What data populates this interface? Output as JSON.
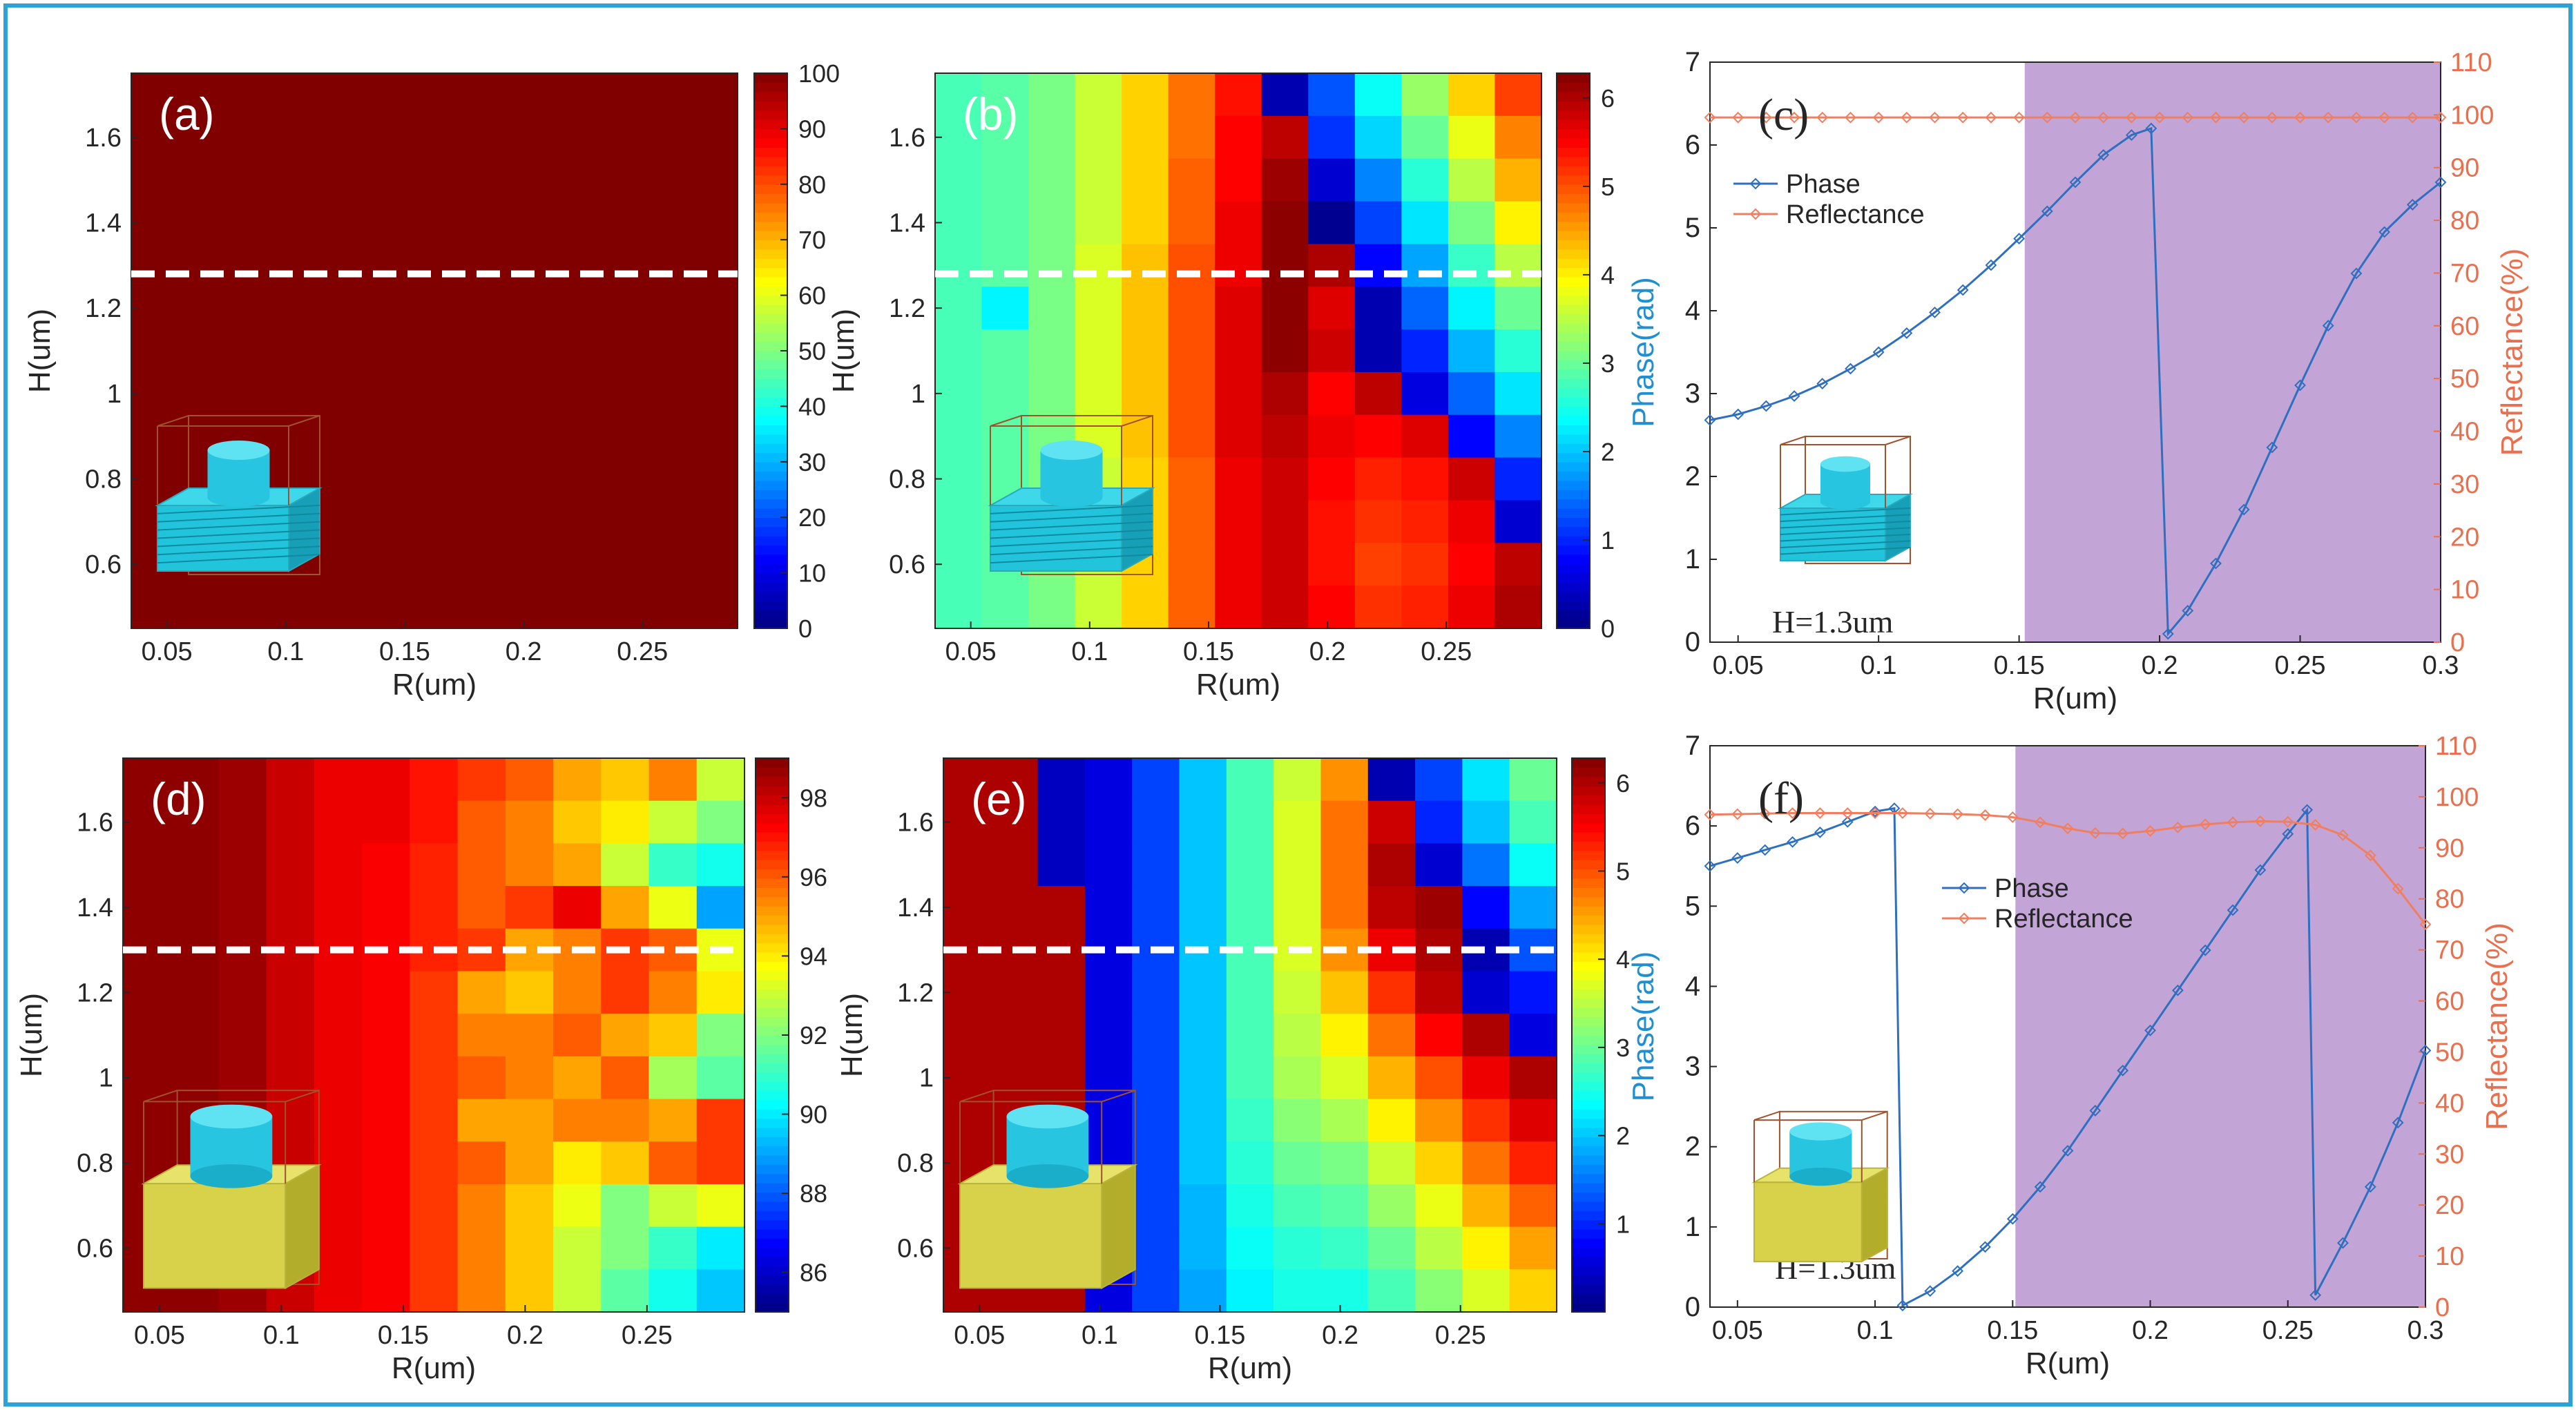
{
  "figure": {
    "frame_color": "#2ba3d6"
  },
  "chart_data": [
    {
      "id": "a",
      "type": "heatmap",
      "label": "(a)",
      "xlabel": "R(um)",
      "ylabel": "H(um)",
      "xticks": [
        "0.05",
        "0.1",
        "0.15",
        "0.2",
        "0.25"
      ],
      "yticks": [
        "0.6",
        "0.8",
        "1",
        "1.2",
        "1.4",
        "1.6"
      ],
      "xlim": [
        0.035,
        0.29
      ],
      "ylim": [
        0.45,
        1.75
      ],
      "colorbar": {
        "min": 0,
        "max": 100,
        "ticks": [
          "0",
          "10",
          "20",
          "30",
          "40",
          "50",
          "60",
          "70",
          "80",
          "90",
          "100"
        ]
      },
      "guide_line_H": 1.28,
      "value_summary": "uniform reflectance about 100 over the full grid",
      "uniform_value": 100,
      "inset": "substrate-stack"
    },
    {
      "id": "b",
      "type": "heatmap",
      "label": "(b)",
      "xlabel": "R(um)",
      "ylabel": "H(um)",
      "xticks": [
        "0.05",
        "0.1",
        "0.15",
        "0.2",
        "0.25"
      ],
      "yticks": [
        "0.6",
        "0.8",
        "1",
        "1.2",
        "1.4",
        "1.6"
      ],
      "xlim": [
        0.035,
        0.29
      ],
      "ylim": [
        0.45,
        1.75
      ],
      "colorbar": {
        "min": 0,
        "max": 6.28,
        "ticks": [
          "0",
          "1",
          "2",
          "3",
          "4",
          "5",
          "6"
        ]
      },
      "guide_line_H": 1.28,
      "x_centers": [
        0.045,
        0.065,
        0.085,
        0.105,
        0.125,
        0.145,
        0.165,
        0.185,
        0.205,
        0.225,
        0.245,
        0.265,
        0.285
      ],
      "row_H": [
        1.75,
        1.62,
        1.52,
        1.42,
        1.32,
        1.22,
        1.12,
        1.02,
        0.92,
        0.82,
        0.72,
        0.62,
        0.52
      ],
      "z": [
        [
          2.8,
          2.9,
          3.1,
          3.6,
          4.2,
          4.8,
          5.4,
          0.3,
          1.3,
          2.4,
          3.3,
          4.2,
          5.1
        ],
        [
          2.8,
          2.9,
          3.1,
          3.6,
          4.2,
          4.8,
          5.5,
          5.9,
          1.1,
          2.1,
          3.0,
          3.8,
          4.7
        ],
        [
          2.8,
          2.9,
          3.1,
          3.6,
          4.2,
          4.9,
          5.5,
          6.1,
          0.5,
          1.6,
          2.6,
          3.5,
          4.4
        ],
        [
          2.8,
          2.9,
          3.1,
          3.6,
          4.2,
          4.9,
          5.6,
          6.2,
          0.1,
          1.2,
          2.2,
          3.1,
          4.0
        ],
        [
          2.8,
          2.9,
          3.1,
          3.7,
          4.3,
          5.0,
          5.6,
          6.2,
          6.0,
          0.8,
          1.8,
          2.7,
          3.5
        ],
        [
          2.8,
          2.3,
          3.1,
          3.7,
          4.3,
          5.0,
          5.7,
          6.2,
          5.7,
          0.3,
          1.4,
          2.3,
          3.0
        ],
        [
          2.8,
          2.9,
          3.1,
          3.7,
          4.3,
          5.0,
          5.7,
          6.2,
          5.8,
          0.3,
          1.0,
          1.9,
          2.6
        ],
        [
          2.8,
          2.9,
          3.1,
          3.7,
          4.3,
          5.0,
          5.7,
          6.0,
          5.5,
          5.9,
          0.6,
          1.4,
          2.2
        ],
        [
          2.8,
          2.9,
          3.1,
          3.7,
          4.3,
          5.0,
          5.7,
          5.9,
          5.6,
          5.5,
          5.7,
          0.8,
          1.6
        ],
        [
          2.8,
          2.9,
          3.1,
          3.6,
          4.2,
          4.9,
          5.6,
          5.8,
          5.5,
          5.3,
          5.4,
          5.8,
          1.0
        ],
        [
          2.8,
          2.9,
          3.1,
          3.6,
          4.2,
          4.9,
          5.6,
          5.8,
          5.4,
          5.2,
          5.3,
          5.6,
          0.5
        ],
        [
          2.8,
          2.9,
          3.1,
          3.6,
          4.2,
          4.9,
          5.6,
          5.8,
          5.4,
          5.1,
          5.2,
          5.5,
          5.9
        ],
        [
          2.8,
          2.9,
          3.1,
          3.6,
          4.2,
          4.9,
          5.6,
          5.8,
          5.5,
          5.2,
          5.3,
          5.6,
          6.0
        ]
      ],
      "inset": "substrate-stack"
    },
    {
      "id": "c",
      "type": "line",
      "label": "(c)",
      "xlabel": "R(um)",
      "ylabel": "Phase(rad)",
      "y2label": "Reflectance(%)",
      "xticks": [
        "0.05",
        "0.1",
        "0.15",
        "0.2",
        "0.25",
        "0.3"
      ],
      "yticks": [
        "0",
        "1",
        "2",
        "3",
        "4",
        "5",
        "6",
        "7"
      ],
      "y2ticks": [
        "0",
        "10",
        "20",
        "30",
        "40",
        "50",
        "60",
        "70",
        "80",
        "90",
        "100",
        "110"
      ],
      "xlim": [
        0.04,
        0.3
      ],
      "ylim": [
        0,
        7
      ],
      "y2lim": [
        0,
        110
      ],
      "highlight_region": [
        0.152,
        0.3
      ],
      "annotation": "H=1.3um",
      "legend": [
        "Phase",
        "Reflectance"
      ],
      "series": [
        {
          "name": "Phase",
          "axis": "left",
          "color": "#2f6fbf",
          "x": [
            0.04,
            0.05,
            0.06,
            0.07,
            0.08,
            0.09,
            0.1,
            0.11,
            0.12,
            0.13,
            0.14,
            0.15,
            0.16,
            0.17,
            0.18,
            0.19,
            0.197,
            0.203,
            0.21,
            0.22,
            0.23,
            0.24,
            0.25,
            0.26,
            0.27,
            0.28,
            0.29,
            0.3
          ],
          "y": [
            2.68,
            2.75,
            2.85,
            2.97,
            3.12,
            3.3,
            3.5,
            3.73,
            3.98,
            4.25,
            4.55,
            4.87,
            5.2,
            5.55,
            5.88,
            6.12,
            6.2,
            0.1,
            0.38,
            0.95,
            1.6,
            2.35,
            3.1,
            3.82,
            4.45,
            4.95,
            5.28,
            5.55
          ]
        },
        {
          "name": "Reflectance",
          "axis": "right",
          "color": "#f07f5f",
          "x": [
            0.04,
            0.05,
            0.06,
            0.07,
            0.08,
            0.09,
            0.1,
            0.11,
            0.12,
            0.13,
            0.14,
            0.15,
            0.16,
            0.17,
            0.18,
            0.19,
            0.2,
            0.21,
            0.22,
            0.23,
            0.24,
            0.25,
            0.26,
            0.27,
            0.28,
            0.29,
            0.3
          ],
          "y": [
            99.5,
            99.5,
            99.5,
            99.5,
            99.5,
            99.5,
            99.5,
            99.5,
            99.5,
            99.5,
            99.5,
            99.5,
            99.5,
            99.5,
            99.5,
            99.5,
            99.5,
            99.5,
            99.5,
            99.5,
            99.5,
            99.5,
            99.5,
            99.5,
            99.5,
            99.5,
            99.5
          ]
        }
      ],
      "inset": "substrate-stack"
    },
    {
      "id": "d",
      "type": "heatmap",
      "label": "(d)",
      "xlabel": "R(um)",
      "ylabel": "H(um)",
      "xticks": [
        "0.05",
        "0.1",
        "0.15",
        "0.2",
        "0.25"
      ],
      "yticks": [
        "0.6",
        "0.8",
        "1",
        "1.2",
        "1.4",
        "1.6"
      ],
      "xlim": [
        0.035,
        0.29
      ],
      "ylim": [
        0.45,
        1.75
      ],
      "colorbar": {
        "min": 85,
        "max": 99,
        "ticks": [
          "86",
          "88",
          "90",
          "92",
          "94",
          "96",
          "98"
        ]
      },
      "guide_line_H": 1.3,
      "x_centers": [
        0.045,
        0.065,
        0.085,
        0.105,
        0.125,
        0.145,
        0.165,
        0.185,
        0.205,
        0.225,
        0.245,
        0.265,
        0.285
      ],
      "row_H": [
        1.7,
        1.6,
        1.5,
        1.4,
        1.3,
        1.2,
        1.1,
        1.0,
        0.9,
        0.8,
        0.7,
        0.6,
        0.5
      ],
      "z": [
        [
          98.8,
          98.8,
          98.6,
          98.0,
          97.5,
          97.5,
          97.0,
          96.5,
          96.0,
          95.0,
          94.5,
          95.5,
          93.0
        ],
        [
          98.8,
          98.8,
          98.6,
          98.0,
          97.5,
          97.5,
          97.0,
          96.0,
          95.5,
          94.5,
          94.0,
          93.0,
          92.0
        ],
        [
          98.8,
          98.8,
          98.6,
          98.0,
          97.5,
          97.3,
          96.8,
          96.0,
          95.5,
          95.0,
          93.0,
          91.0,
          90.5
        ],
        [
          98.8,
          98.8,
          98.6,
          98.0,
          97.5,
          97.3,
          96.8,
          96.0,
          96.5,
          97.5,
          95.0,
          93.5,
          89.0
        ],
        [
          98.8,
          98.8,
          98.6,
          98.0,
          97.5,
          97.3,
          96.8,
          96.5,
          95.0,
          95.5,
          96.5,
          96.0,
          93.5
        ],
        [
          98.8,
          98.8,
          98.6,
          98.0,
          97.5,
          97.3,
          96.5,
          95.0,
          94.5,
          95.5,
          96.5,
          95.5,
          94.0
        ],
        [
          98.8,
          98.8,
          98.6,
          98.0,
          97.5,
          97.3,
          96.5,
          95.5,
          95.5,
          96.0,
          95.0,
          94.5,
          92.0
        ],
        [
          98.8,
          98.8,
          98.6,
          98.0,
          97.5,
          97.3,
          96.5,
          96.0,
          95.5,
          95.0,
          96.0,
          92.5,
          91.5
        ],
        [
          98.8,
          98.8,
          98.6,
          98.0,
          97.5,
          97.3,
          96.5,
          95.0,
          95.0,
          95.5,
          95.5,
          95.0,
          96.5
        ],
        [
          98.8,
          98.8,
          98.6,
          98.0,
          97.5,
          97.3,
          96.5,
          96.0,
          95.0,
          94.0,
          94.5,
          96.0,
          96.5
        ],
        [
          98.8,
          98.8,
          98.6,
          98.0,
          97.5,
          97.3,
          96.5,
          95.5,
          94.5,
          93.5,
          92.0,
          93.0,
          93.5
        ],
        [
          98.8,
          98.8,
          98.6,
          98.0,
          97.5,
          97.3,
          96.5,
          95.5,
          94.5,
          93.0,
          92.0,
          91.0,
          90.0
        ],
        [
          98.8,
          98.8,
          98.6,
          98.0,
          97.5,
          97.3,
          96.5,
          95.5,
          94.5,
          93.0,
          91.5,
          90.5,
          89.5
        ]
      ],
      "inset": "substrate-block"
    },
    {
      "id": "e",
      "type": "heatmap",
      "label": "(e)",
      "xlabel": "R(um)",
      "ylabel": "H(um)",
      "xticks": [
        "0.05",
        "0.1",
        "0.15",
        "0.2",
        "0.25"
      ],
      "yticks": [
        "0.6",
        "0.8",
        "1",
        "1.2",
        "1.4",
        "1.6"
      ],
      "xlim": [
        0.035,
        0.29
      ],
      "ylim": [
        0.45,
        1.75
      ],
      "colorbar": {
        "min": 0,
        "max": 6.28,
        "ticks": [
          "1",
          "2",
          "3",
          "4",
          "5",
          "6"
        ]
      },
      "guide_line_H": 1.3,
      "x_centers": [
        0.045,
        0.065,
        0.085,
        0.105,
        0.125,
        0.145,
        0.165,
        0.185,
        0.205,
        0.225,
        0.245,
        0.265,
        0.285
      ],
      "row_H": [
        1.7,
        1.6,
        1.5,
        1.4,
        1.3,
        1.2,
        1.1,
        1.0,
        0.9,
        0.8,
        0.7,
        0.6,
        0.5
      ],
      "z": [
        [
          6.0,
          6.0,
          0.4,
          0.6,
          1.2,
          2.0,
          2.8,
          3.6,
          4.6,
          0.3,
          1.2,
          2.2,
          3.0
        ],
        [
          6.0,
          6.0,
          0.4,
          0.6,
          1.2,
          2.0,
          2.8,
          3.7,
          4.8,
          5.8,
          1.0,
          2.0,
          2.8
        ],
        [
          6.0,
          6.0,
          0.4,
          0.6,
          1.2,
          2.0,
          2.8,
          3.7,
          4.8,
          6.0,
          0.5,
          1.5,
          2.4
        ],
        [
          6.0,
          6.0,
          6.0,
          0.6,
          1.2,
          2.0,
          2.8,
          3.7,
          4.8,
          5.9,
          6.1,
          0.8,
          1.8
        ],
        [
          6.0,
          6.0,
          6.0,
          0.6,
          1.2,
          2.0,
          2.8,
          3.7,
          4.6,
          5.6,
          6.0,
          0.3,
          1.3
        ],
        [
          6.0,
          6.0,
          6.0,
          0.6,
          1.2,
          2.0,
          2.8,
          3.6,
          4.3,
          5.2,
          5.9,
          0.5,
          0.9
        ],
        [
          6.0,
          6.0,
          6.0,
          0.6,
          1.2,
          2.0,
          2.8,
          3.5,
          4.0,
          4.8,
          5.5,
          6.0,
          0.6
        ],
        [
          6.0,
          6.0,
          6.0,
          0.6,
          1.2,
          2.0,
          2.8,
          3.4,
          3.7,
          4.4,
          5.0,
          5.6,
          6.0
        ],
        [
          6.0,
          6.0,
          6.0,
          0.6,
          1.2,
          2.0,
          2.7,
          3.2,
          3.4,
          4.0,
          4.6,
          5.2,
          5.7
        ],
        [
          6.0,
          6.0,
          6.0,
          0.6,
          1.2,
          2.0,
          2.6,
          3.0,
          3.1,
          3.6,
          4.2,
          4.8,
          5.3
        ],
        [
          6.0,
          6.0,
          6.0,
          0.6,
          1.2,
          1.9,
          2.5,
          2.8,
          2.9,
          3.3,
          3.8,
          4.4,
          4.9
        ],
        [
          6.0,
          6.0,
          6.0,
          0.6,
          1.2,
          1.9,
          2.4,
          2.6,
          2.7,
          3.0,
          3.5,
          4.0,
          4.5
        ],
        [
          6.0,
          6.0,
          6.0,
          0.6,
          1.2,
          1.8,
          2.3,
          2.5,
          2.5,
          2.8,
          3.2,
          3.7,
          4.2
        ]
      ],
      "inset": "substrate-block"
    },
    {
      "id": "f",
      "type": "line",
      "label": "(f)",
      "xlabel": "R(um)",
      "ylabel": "Phase(rad)",
      "y2label": "Reflectance(%)",
      "xticks": [
        "0.05",
        "0.1",
        "0.15",
        "0.2",
        "0.25",
        "0.3"
      ],
      "yticks": [
        "0",
        "1",
        "2",
        "3",
        "4",
        "5",
        "6",
        "7"
      ],
      "y2ticks": [
        "0",
        "10",
        "20",
        "30",
        "40",
        "50",
        "60",
        "70",
        "80",
        "90",
        "100",
        "110"
      ],
      "xlim": [
        0.04,
        0.3
      ],
      "ylim": [
        0,
        7
      ],
      "y2lim": [
        0,
        110
      ],
      "highlight_region": [
        0.151,
        0.3
      ],
      "annotation": "H=1.3um",
      "legend": [
        "Phase",
        "Reflectance"
      ],
      "series": [
        {
          "name": "Phase",
          "axis": "left",
          "color": "#2f6fbf",
          "x": [
            0.04,
            0.05,
            0.06,
            0.07,
            0.08,
            0.09,
            0.1,
            0.107,
            0.11,
            0.12,
            0.13,
            0.14,
            0.15,
            0.16,
            0.17,
            0.18,
            0.19,
            0.2,
            0.21,
            0.22,
            0.23,
            0.24,
            0.25,
            0.257,
            0.26,
            0.27,
            0.28,
            0.29,
            0.3
          ],
          "y": [
            5.5,
            5.6,
            5.7,
            5.8,
            5.92,
            6.05,
            6.18,
            6.22,
            0.02,
            0.2,
            0.45,
            0.75,
            1.1,
            1.5,
            1.95,
            2.45,
            2.95,
            3.45,
            3.95,
            4.45,
            4.95,
            5.45,
            5.9,
            6.2,
            0.15,
            0.8,
            1.5,
            2.3,
            3.2
          ]
        },
        {
          "name": "Reflectance",
          "axis": "right",
          "color": "#f07f5f",
          "x": [
            0.04,
            0.05,
            0.06,
            0.07,
            0.08,
            0.09,
            0.1,
            0.11,
            0.12,
            0.13,
            0.14,
            0.15,
            0.16,
            0.17,
            0.18,
            0.19,
            0.2,
            0.21,
            0.22,
            0.23,
            0.24,
            0.25,
            0.26,
            0.27,
            0.28,
            0.29,
            0.3
          ],
          "y": [
            96.5,
            96.6,
            96.7,
            96.8,
            96.8,
            96.8,
            96.8,
            96.8,
            96.7,
            96.6,
            96.4,
            96.0,
            95.0,
            93.8,
            92.9,
            92.8,
            93.3,
            94.0,
            94.6,
            95.0,
            95.2,
            95.1,
            94.5,
            92.5,
            88.5,
            82.0,
            75.0
          ]
        }
      ],
      "inset": "substrate-block"
    }
  ]
}
